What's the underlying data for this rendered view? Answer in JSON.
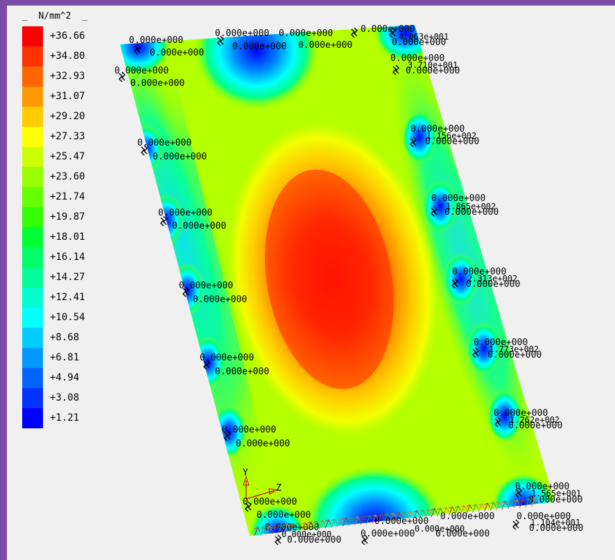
{
  "legend": {
    "unit": "_  N/mm^2  _",
    "values": [
      "+36.66",
      "+34.80",
      "+32.93",
      "+31.07",
      "+29.20",
      "+27.33",
      "+25.47",
      "+23.60",
      "+21.74",
      "+19.87",
      "+18.01",
      "+16.14",
      "+14.27",
      "+12.41",
      "+10.54",
      "+8.68",
      "+6.81",
      "+4.94",
      "+3.08",
      "+1.21"
    ],
    "colors": [
      "#ff0000",
      "#ff3300",
      "#ff6600",
      "#ff9900",
      "#ffcc00",
      "#ffff00",
      "#ccff00",
      "#99ff00",
      "#66ff00",
      "#33ff00",
      "#00ff33",
      "#00ff66",
      "#00ff99",
      "#00ffcc",
      "#00ffff",
      "#00ccff",
      "#0099ff",
      "#0066ff",
      "#0033ff",
      "#0000ff"
    ]
  },
  "plot": {
    "axis_labels": {
      "y": "Y",
      "z": "Z"
    },
    "node_labels": {
      "l1a": "0.000e+000",
      "l1b": "0.000e+000",
      "l2a": "0.000e+000",
      "l2b": "0.000e+000",
      "l3a": "0.000e+000",
      "l3b": "0.000e+000",
      "l4a": "0.000e+000",
      "l4b": "0.000e+000",
      "l5a": "0.000e+000",
      "l5b": "0.000e+000",
      "l6a": "0.000e+000",
      "l6b": "0.000e+000",
      "l7a": "0.000e+000",
      "l7b": "0.000e+000",
      "t1a": "0.000e+000",
      "t1b": "0.000e+000",
      "t2a": "0.000e+000",
      "t2b": "0.000e+000",
      "r1a": "0.000e+000",
      "r1b": "0.000e+000",
      "r1c": "4.063e+001",
      "r2a": "0.000e+000",
      "r2b": "0.000e+000",
      "r2c": "3.710e+001",
      "r3a": "0.000e+000",
      "r3b": "0.000e+000",
      "r3c": "1.156e+002",
      "r4a": "0.000e+000",
      "r4b": "0.000e+000",
      "r4c": "1.865e+002",
      "r5a": "0.000e+000",
      "r5b": "0.000e+000",
      "r5c": "2.313e+002",
      "r6a": "0.000e+000",
      "r6b": "0.000e+000",
      "r6c": "1.773e+002",
      "r7a": "0.000e+000",
      "r7b": "0.000e+000",
      "r7c": "1.262e+002",
      "r8a": "0.000e+000",
      "r8b": "0.000e+000",
      "r8c": "1.565e+001",
      "r9a": "0.000e+000",
      "r9b": "0.000e+000",
      "r9c": "1.104e+001",
      "b1a": "0.000e+000",
      "b1b": "0.000e+000",
      "b1c": "0.000e+000",
      "b2a": "0.000e+000",
      "b2b": "0.000e+000",
      "b2c": "0.000e+000",
      "b3a": "0.000e+000",
      "b3b": "0.000e+000",
      "b4a": "0.000e+000",
      "b4b": "0.000e+000"
    }
  }
}
